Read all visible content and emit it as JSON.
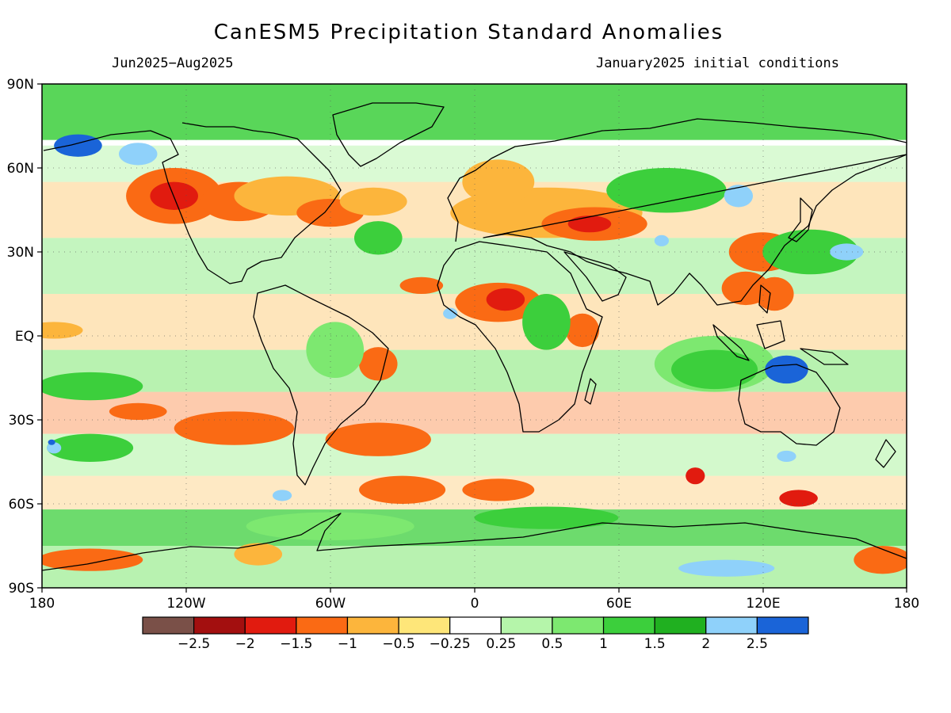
{
  "title": "CanESM5 Precipitation Standard Anomalies",
  "period": "Jun2025−Aug2025",
  "init": "January2025 initial conditions",
  "lat_labels": [
    "90N",
    "60N",
    "30N",
    "EQ",
    "30S",
    "60S",
    "90S"
  ],
  "lon_labels": [
    "180",
    "120W",
    "60W",
    "0",
    "60E",
    "120E",
    "180"
  ],
  "colorbar": {
    "colors": [
      "#7a5048",
      "#a30f0f",
      "#e11b0f",
      "#fa6a14",
      "#fcb53c",
      "#fee679",
      "#ffffff",
      "#b5f5aa",
      "#7de870",
      "#3ccf3c",
      "#20b020",
      "#8fd1fa",
      "#1a64d8"
    ],
    "tick_labels": [
      "−2.5",
      "−2",
      "−1.5",
      "−1",
      "−0.5",
      "−0.25",
      "0.25",
      "0.5",
      "1",
      "1.5",
      "2",
      "2.5"
    ]
  },
  "regions": [
    {
      "cls": 3,
      "lon": -125,
      "lat": 50,
      "rx": 20,
      "ry": 10
    },
    {
      "cls": 2,
      "lon": -125,
      "lat": 50,
      "rx": 10,
      "ry": 5
    },
    {
      "cls": 3,
      "lon": -98,
      "lat": 48,
      "rx": 16,
      "ry": 7
    },
    {
      "cls": 4,
      "lon": -78,
      "lat": 50,
      "rx": 22,
      "ry": 7
    },
    {
      "cls": 3,
      "lon": -60,
      "lat": 44,
      "rx": 14,
      "ry": 5
    },
    {
      "cls": 4,
      "lon": -42,
      "lat": 48,
      "rx": 14,
      "ry": 5
    },
    {
      "cls": 3,
      "lon": -40,
      "lat": -10,
      "rx": 8,
      "ry": 6
    },
    {
      "cls": 3,
      "lon": -22,
      "lat": 18,
      "rx": 9,
      "ry": 3
    },
    {
      "cls": 3,
      "lon": 10,
      "lat": 12,
      "rx": 18,
      "ry": 7
    },
    {
      "cls": 2,
      "lon": 13,
      "lat": 13,
      "rx": 8,
      "ry": 4
    },
    {
      "cls": 4,
      "lon": 30,
      "lat": 44,
      "rx": 40,
      "ry": 9
    },
    {
      "cls": 3,
      "lon": 50,
      "lat": 40,
      "rx": 22,
      "ry": 6
    },
    {
      "cls": 2,
      "lon": 48,
      "lat": 40,
      "rx": 9,
      "ry": 3
    },
    {
      "cls": 4,
      "lon": 10,
      "lat": 55,
      "rx": 15,
      "ry": 8
    },
    {
      "cls": 3,
      "lon": 45,
      "lat": 2,
      "rx": 7,
      "ry": 6
    },
    {
      "cls": 3,
      "lon": 120,
      "lat": 30,
      "rx": 14,
      "ry": 7
    },
    {
      "cls": 3,
      "lon": 113,
      "lat": 17,
      "rx": 10,
      "ry": 6
    },
    {
      "cls": 3,
      "lon": 125,
      "lat": 15,
      "rx": 8,
      "ry": 6
    },
    {
      "cls": 4,
      "lon": -175,
      "lat": 2,
      "rx": 12,
      "ry": 3
    },
    {
      "cls": 3,
      "lon": -140,
      "lat": -27,
      "rx": 12,
      "ry": 3
    },
    {
      "cls": 3,
      "lon": -100,
      "lat": -33,
      "rx": 25,
      "ry": 6
    },
    {
      "cls": 3,
      "lon": -40,
      "lat": -37,
      "rx": 22,
      "ry": 6
    },
    {
      "cls": 3,
      "lon": -30,
      "lat": -55,
      "rx": 18,
      "ry": 5
    },
    {
      "cls": 3,
      "lon": 10,
      "lat": -55,
      "rx": 15,
      "ry": 4
    },
    {
      "cls": 2,
      "lon": 92,
      "lat": -50,
      "rx": 4,
      "ry": 3
    },
    {
      "cls": 2,
      "lon": 135,
      "lat": -58,
      "rx": 8,
      "ry": 3
    },
    {
      "cls": 3,
      "lon": -160,
      "lat": -80,
      "rx": 22,
      "ry": 4
    },
    {
      "cls": 3,
      "lon": 170,
      "lat": -80,
      "rx": 12,
      "ry": 5
    },
    {
      "cls": 4,
      "lon": -90,
      "lat": -78,
      "rx": 10,
      "ry": 4
    },
    {
      "cls": 8,
      "lon": 100,
      "lat": -10,
      "rx": 25,
      "ry": 10
    },
    {
      "cls": 9,
      "lon": 100,
      "lat": -12,
      "rx": 18,
      "ry": 7
    },
    {
      "cls": 12,
      "lon": 130,
      "lat": -12,
      "rx": 9,
      "ry": 5
    },
    {
      "cls": 12,
      "lon": -165,
      "lat": 68,
      "rx": 10,
      "ry": 4
    },
    {
      "cls": 11,
      "lon": -140,
      "lat": 65,
      "rx": 8,
      "ry": 4
    },
    {
      "cls": 9,
      "lon": -160,
      "lat": -18,
      "rx": 22,
      "ry": 5
    },
    {
      "cls": 9,
      "lon": -160,
      "lat": -40,
      "rx": 18,
      "ry": 5
    },
    {
      "cls": 8,
      "lon": -60,
      "lat": -68,
      "rx": 35,
      "ry": 5
    },
    {
      "cls": 9,
      "lon": 30,
      "lat": -65,
      "rx": 30,
      "ry": 4
    },
    {
      "cls": 11,
      "lon": 105,
      "lat": -83,
      "rx": 20,
      "ry": 3
    },
    {
      "cls": 9,
      "lon": 80,
      "lat": 52,
      "rx": 25,
      "ry": 8
    },
    {
      "cls": 11,
      "lon": 110,
      "lat": 50,
      "rx": 6,
      "ry": 4
    },
    {
      "cls": 11,
      "lon": 78,
      "lat": 34,
      "rx": 3,
      "ry": 2
    },
    {
      "cls": 9,
      "lon": 140,
      "lat": 30,
      "rx": 20,
      "ry": 8
    },
    {
      "cls": 11,
      "lon": 155,
      "lat": 30,
      "rx": 7,
      "ry": 3
    },
    {
      "cls": 9,
      "lon": -40,
      "lat": 35,
      "rx": 10,
      "ry": 6
    },
    {
      "cls": 8,
      "lon": -58,
      "lat": -5,
      "rx": 12,
      "ry": 10
    },
    {
      "cls": 11,
      "lon": -10,
      "lat": 8,
      "rx": 3,
      "ry": 2
    },
    {
      "cls": 9,
      "lon": 30,
      "lat": 5,
      "rx": 10,
      "ry": 10
    },
    {
      "cls": 11,
      "lon": -175,
      "lat": -40,
      "rx": 3,
      "ry": 2
    },
    {
      "cls": 12,
      "lon": -176,
      "lat": -38,
      "rx": 1.5,
      "ry": 1
    },
    {
      "cls": 11,
      "lon": -80,
      "lat": -57,
      "rx": 4,
      "ry": 2
    },
    {
      "cls": 11,
      "lon": 130,
      "lat": -43,
      "rx": 4,
      "ry": 2
    }
  ]
}
